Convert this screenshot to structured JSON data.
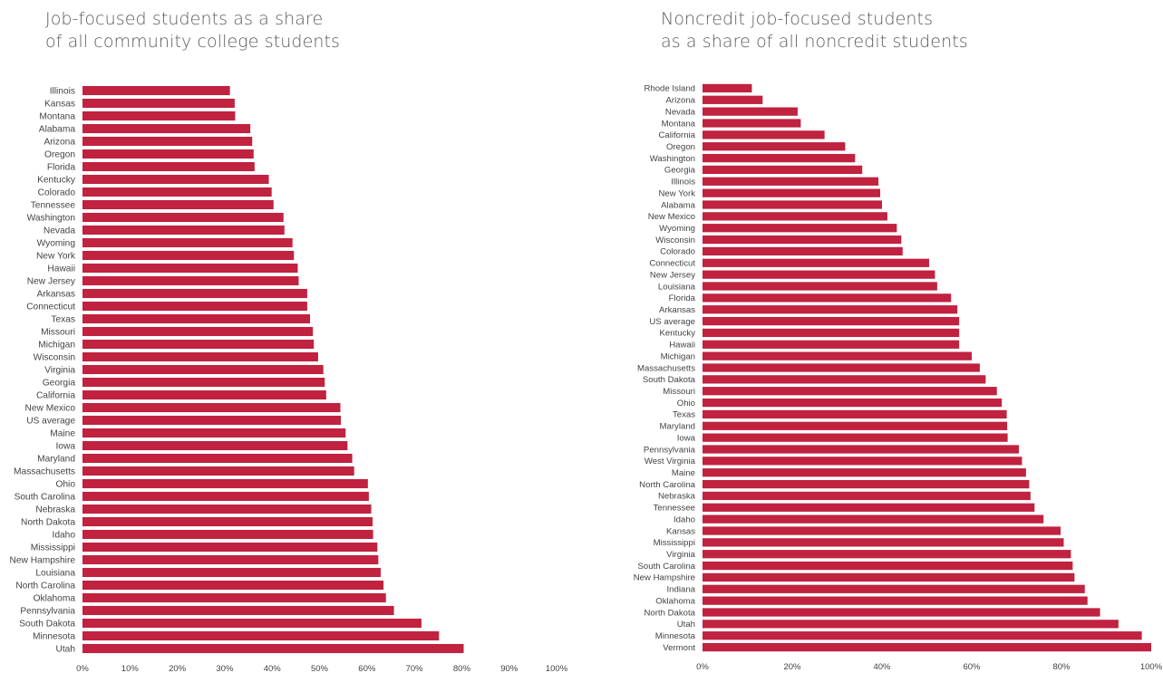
{
  "chart_data": [
    {
      "type": "bar",
      "orientation": "horizontal",
      "title": [
        "Job-focused students as a share",
        "of all community college students"
      ],
      "bar_color": "#c0223f",
      "xlim": [
        0,
        100
      ],
      "x_ticks": [
        "0%",
        "10%",
        "20%",
        "30%",
        "40%",
        "50%",
        "60%",
        "70%",
        "80%",
        "90%",
        "100%"
      ],
      "categories": [
        "Illinois",
        "Kansas",
        "Montana",
        "Alabama",
        "Arizona",
        "Oregon",
        "Florida",
        "Kentucky",
        "Colorado",
        "Tennessee",
        "Washington",
        "Nevada",
        "Wyoming",
        "New York",
        "Hawaii",
        "New Jersey",
        "Arkansas",
        "Connecticut",
        "Texas",
        "Missouri",
        "Michigan",
        "Wisconsin",
        "Virginia",
        "Georgia",
        "California",
        "New Mexico",
        "US average",
        "Maine",
        "Iowa",
        "Maryland",
        "Massachusetts",
        "Ohio",
        "South Carolina",
        "Nebraska",
        "North Dakota",
        "Idaho",
        "Mississippi",
        "New Hampshire",
        "Louisiana",
        "North Carolina",
        "Oklahoma",
        "Pennsylvania",
        "South Dakota",
        "Minnesota",
        "Utah"
      ],
      "values": [
        31.1,
        32.1,
        32.2,
        35.4,
        35.8,
        36.1,
        36.3,
        39.3,
        39.9,
        40.3,
        42.4,
        42.6,
        44.3,
        44.6,
        45.4,
        45.6,
        47.4,
        47.4,
        48.0,
        48.6,
        48.8,
        49.7,
        50.8,
        51.1,
        51.4,
        54.4,
        54.5,
        55.5,
        55.9,
        56.9,
        57.3,
        60.2,
        60.4,
        60.9,
        61.2,
        61.3,
        62.2,
        62.4,
        62.9,
        63.5,
        64.0,
        65.7,
        71.5,
        75.2,
        80.4
      ]
    },
    {
      "type": "bar",
      "orientation": "horizontal",
      "title": [
        "Noncredit job-focused students",
        "as a share of all noncredit students"
      ],
      "bar_color": "#c0223f",
      "xlim": [
        0,
        100
      ],
      "x_ticks": [
        "0%",
        "20%",
        "40%",
        "60%",
        "80%",
        "100%"
      ],
      "categories": [
        "Rhode Island",
        "Arizona",
        "Nevada",
        "Montana",
        "California",
        "Oregon",
        "Washington",
        "Georgia",
        "Illinois",
        "New York",
        "Alabama",
        "New Mexico",
        "Wyoming",
        "Wisconsin",
        "Colorado",
        "Connecticut",
        "New Jersey",
        "Louisiana",
        "Florida",
        "Arkansas",
        "US average",
        "Kentucky",
        "Hawaii",
        "Michigan",
        "Massachusetts",
        "South Dakota",
        "Missouri",
        "Ohio",
        "Texas",
        "Maryland",
        "Iowa",
        "Pennsylvania",
        "West Virginia",
        "Maine",
        "North Carolina",
        "Nebraska",
        "Tennessee",
        "Idaho",
        "Kansas",
        "Mississippi",
        "Virginia",
        "South Carolina",
        "New Hampshire",
        "Indiana",
        "Oklahoma",
        "North Dakota",
        "Utah",
        "Minnesota",
        "Vermont"
      ],
      "values": [
        11.0,
        13.4,
        21.2,
        21.9,
        27.2,
        31.8,
        34.0,
        35.6,
        39.2,
        39.6,
        40.0,
        41.2,
        43.3,
        44.3,
        44.6,
        50.5,
        51.8,
        52.3,
        55.4,
        56.8,
        57.2,
        57.2,
        57.2,
        60.0,
        61.8,
        63.1,
        65.6,
        66.7,
        67.8,
        67.9,
        68.0,
        70.5,
        71.2,
        72.1,
        72.8,
        73.1,
        74.0,
        76.0,
        79.8,
        80.5,
        82.1,
        82.5,
        82.9,
        85.2,
        85.8,
        88.6,
        92.7,
        97.9,
        100.0
      ]
    }
  ]
}
